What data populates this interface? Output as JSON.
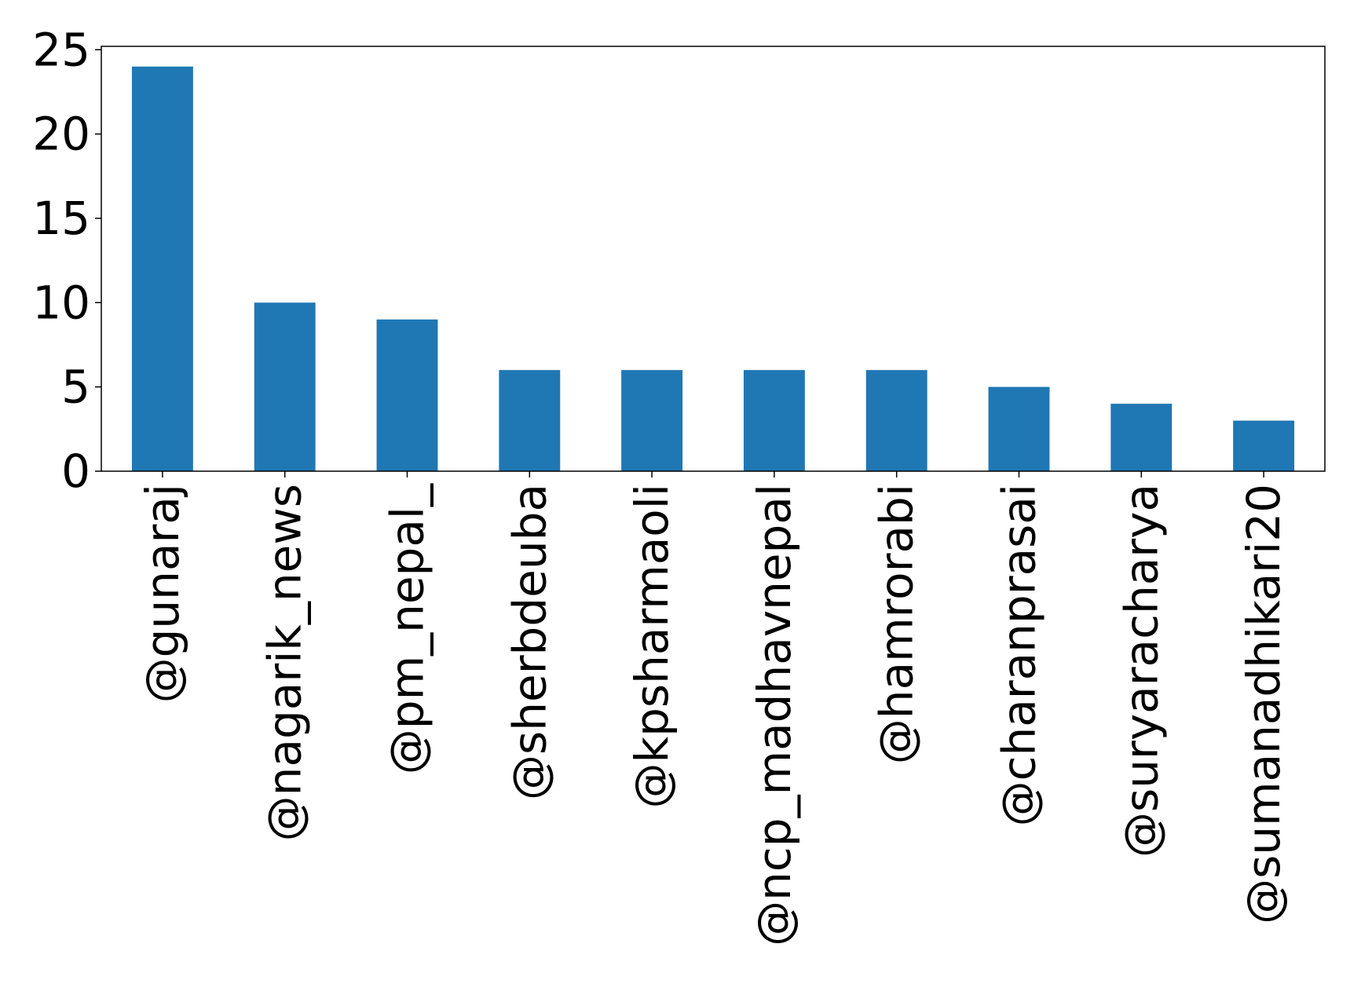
{
  "chart_data": {
    "type": "bar",
    "categories": [
      "@gunaraj",
      "@nagarik_news",
      "@pm_nepal_",
      "@sherbdeuba",
      "@kpsharmaoli",
      "@ncp_madhavnepal",
      "@hamrorabi",
      "@charanprasai",
      "@suryaracharya",
      "@sumanadhikari20"
    ],
    "values": [
      24,
      10,
      9,
      6,
      6,
      6,
      6,
      5,
      4,
      3
    ],
    "ylim": [
      0,
      25.2
    ],
    "yticks": [
      0,
      5,
      10,
      15,
      20,
      25
    ],
    "grid": false,
    "legend": false,
    "bar_color": "#1f77b4"
  }
}
